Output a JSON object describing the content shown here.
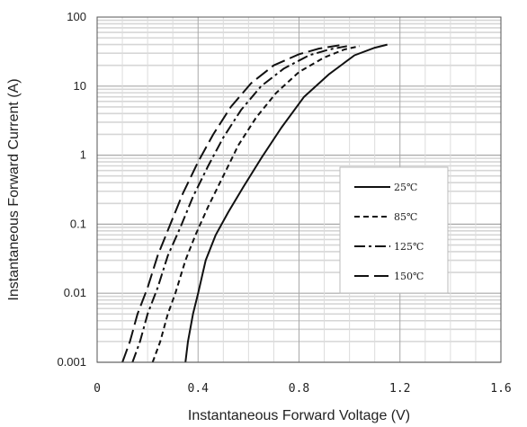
{
  "chart_data": {
    "type": "line",
    "title": "",
    "xlabel": "Instantaneous Forward Voltage (V)",
    "ylabel": "Instantaneous Forward Current (A)",
    "xlim": [
      0,
      1.6
    ],
    "ylim": [
      0.001,
      100
    ],
    "yscale": "log",
    "x_ticks": [
      "0",
      "0.4",
      "0.8",
      "1.2",
      "1.6"
    ],
    "y_ticks": [
      "0.001",
      "0.01",
      "0.1",
      "1",
      "10",
      "100"
    ],
    "grid": true,
    "legend_position": "lower-right",
    "series": [
      {
        "name": "25℃",
        "dash": "solid",
        "x": [
          0.35,
          0.36,
          0.38,
          0.4,
          0.43,
          0.47,
          0.52,
          0.58,
          0.65,
          0.73,
          0.82,
          0.92,
          1.02,
          1.1,
          1.15
        ],
        "y": [
          0.001,
          0.002,
          0.005,
          0.01,
          0.03,
          0.07,
          0.15,
          0.35,
          0.9,
          2.5,
          7,
          15,
          28,
          36,
          40
        ]
      },
      {
        "name": "85℃",
        "dash": "short-dash",
        "x": [
          0.22,
          0.25,
          0.28,
          0.31,
          0.35,
          0.39,
          0.44,
          0.5,
          0.56,
          0.63,
          0.71,
          0.8,
          0.9,
          0.98,
          1.04
        ],
        "y": [
          0.001,
          0.002,
          0.005,
          0.01,
          0.03,
          0.07,
          0.18,
          0.5,
          1.4,
          3.5,
          8,
          16,
          26,
          34,
          38
        ]
      },
      {
        "name": "125℃",
        "dash": "dash-dot",
        "x": [
          0.14,
          0.17,
          0.2,
          0.24,
          0.28,
          0.33,
          0.38,
          0.44,
          0.5,
          0.57,
          0.65,
          0.74,
          0.84,
          0.92,
          0.99
        ],
        "y": [
          0.001,
          0.002,
          0.005,
          0.012,
          0.035,
          0.09,
          0.25,
          0.7,
          1.8,
          4.5,
          10,
          18,
          28,
          34,
          38
        ]
      },
      {
        "name": "150℃",
        "dash": "long-dash",
        "x": [
          0.1,
          0.13,
          0.16,
          0.2,
          0.24,
          0.29,
          0.34,
          0.4,
          0.46,
          0.53,
          0.61,
          0.7,
          0.8,
          0.88,
          0.96
        ],
        "y": [
          0.001,
          0.002,
          0.005,
          0.012,
          0.035,
          0.1,
          0.28,
          0.8,
          2,
          5,
          11,
          20,
          29,
          35,
          39
        ]
      }
    ]
  }
}
